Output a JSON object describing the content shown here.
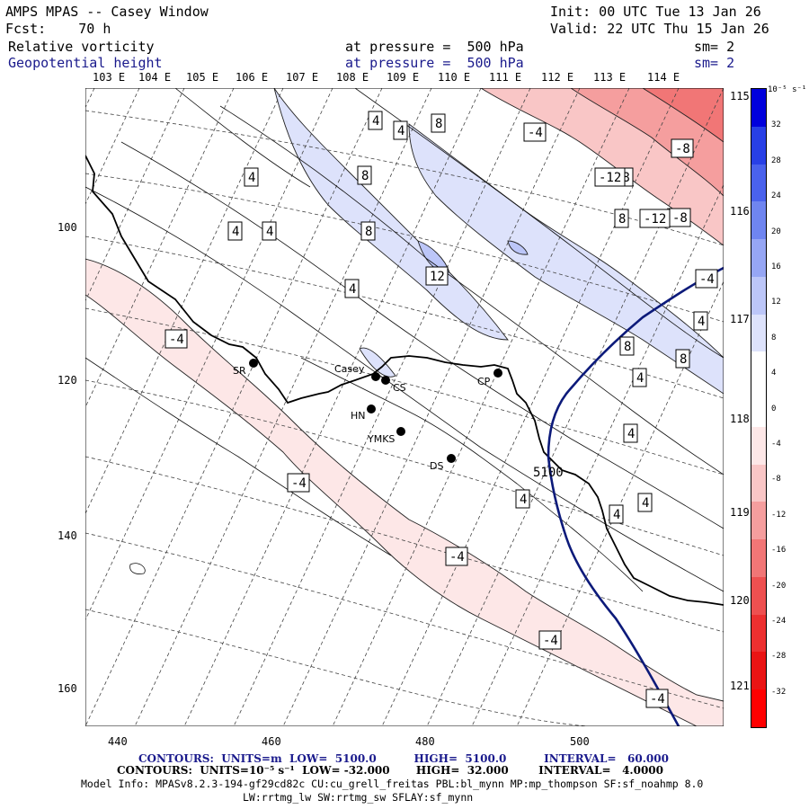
{
  "header": {
    "title": "AMPS MPAS -- Casey Window",
    "forecast": "Fcst:    70 h",
    "init": "Init: 00 UTC Tue 13 Jan 26",
    "valid": "Valid: 22 UTC Thu 15 Jan 26",
    "field1_name": "Relative vorticity",
    "field1_level": "at pressure =  500 hPa",
    "field1_sm": "sm= 2",
    "field2_name": "Geopotential height",
    "field2_level": "at pressure =  500 hPa",
    "field2_sm": "sm= 2"
  },
  "map": {
    "lon_labels_top": [
      "103 E",
      "104 E",
      "105 E",
      "106 E",
      "107 E",
      "108 E",
      "109 E",
      "110 E",
      "111 E",
      "112 E",
      "113 E",
      "114 E"
    ],
    "lon_labels_right": [
      "115 E",
      "116 E",
      "117 E",
      "118 E",
      "119 E",
      "120 E",
      "121 E"
    ],
    "x_ticks": [
      "440",
      "460",
      "480",
      "500"
    ],
    "y_ticks": [
      "100",
      "120",
      "140",
      "160"
    ],
    "stations": [
      {
        "name": "SR"
      },
      {
        "name": "Casey"
      },
      {
        "name": "CS"
      },
      {
        "name": "HN"
      },
      {
        "name": "YMKS"
      },
      {
        "name": "DS"
      },
      {
        "name": "CP"
      }
    ],
    "vorticity_labels": [
      "4",
      "4",
      "8",
      "-4",
      "4",
      "8",
      "8",
      "-8",
      "-8",
      "-12",
      "4",
      "4",
      "8",
      "-8",
      "-12",
      "12",
      "-4",
      "4",
      "4",
      "-4",
      "8",
      "8",
      "4",
      "4",
      "-4",
      "4",
      "4",
      "4",
      "-4",
      "-4",
      "-4"
    ],
    "height_label": "5100"
  },
  "colorbar": {
    "unit": "10⁻⁵ s⁻¹",
    "labels": [
      "32",
      "28",
      "24",
      "20",
      "16",
      "12",
      "8",
      "4",
      "0",
      "-4",
      "-8",
      "-12",
      "-16",
      "-20",
      "-24",
      "-28",
      "-32"
    ],
    "colors": [
      "#0000dc",
      "#2840e6",
      "#4a62ec",
      "#6f85f0",
      "#96a6f4",
      "#bcc6f8",
      "#dde2fb",
      "#ffffff",
      "#ffffff",
      "#fde7e7",
      "#f9c6c6",
      "#f59e9e",
      "#f17676",
      "#ee5050",
      "#ec3030",
      "#ea1414",
      "#ff0000"
    ]
  },
  "footer": {
    "contours1": "CONTOURS:  UNITS=m  LOW=  5100.0          HIGH=  5100.0          INTERVAL=   60.000",
    "contours2": "CONTOURS:  UNITS=10⁻⁵ s⁻¹  LOW= -32.000       HIGH=  32.000        INTERVAL=   4.0000",
    "model_info": "Model Info: MPASv8.2.3-194-gf29cd82c CU:cu_grell_freitas PBL:bl_mynn MP:mp_thompson SF:sf_noahmp 8.0",
    "model_info2": "LW:rrtmg_lw SW:rrtmg_sw SFLAY:sf_mynn"
  },
  "colors": {
    "positive": "#dde2fb",
    "negative": "#fde7e7",
    "height_contour": "#0c1a7a"
  }
}
